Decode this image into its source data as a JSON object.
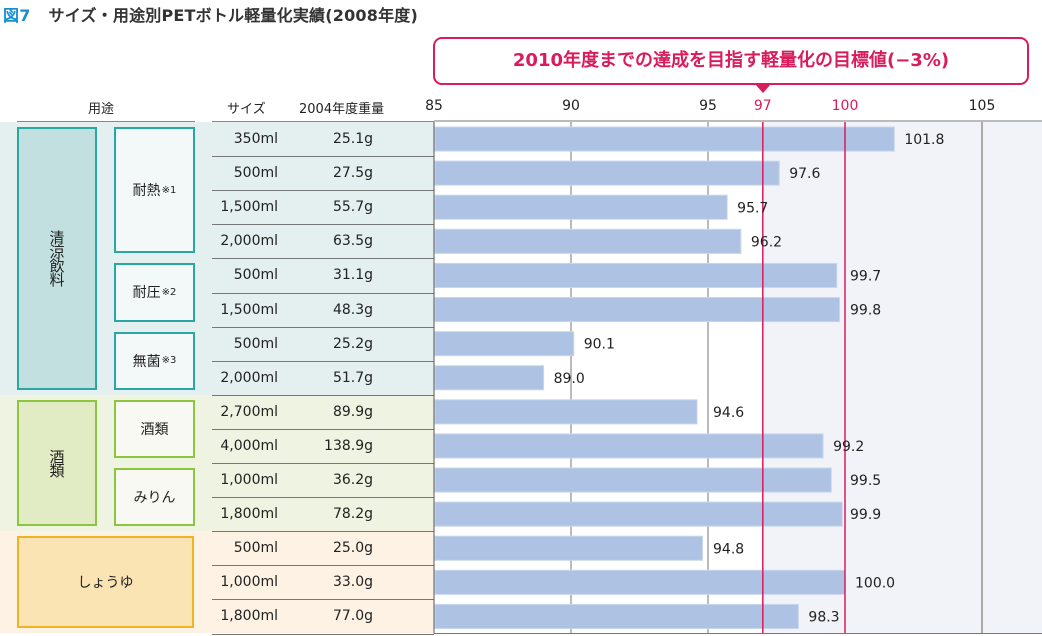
{
  "figure_label": "図7",
  "title": "サイズ・用途別PETボトル軽量化実績(2008年度)",
  "callout": "2010年度までの達成を目指す軽量化の目標値(−3%)",
  "headers": {
    "usage": "用途",
    "size": "サイズ",
    "weight2004": "2004年度重量"
  },
  "groups": [
    {
      "name": "清涼飲料",
      "color_bg": "#e3f0ef",
      "box_fill": "#c1e0df",
      "box_border": "#2aa7a3",
      "subgroups": [
        {
          "name": "耐熱",
          "note": "※1",
          "rows": 4
        },
        {
          "name": "耐圧",
          "note": "※2",
          "rows": 2
        },
        {
          "name": "無菌",
          "note": "※3",
          "rows": 2
        }
      ]
    },
    {
      "name": "酒類",
      "color_bg": "#eef4e1",
      "box_fill": "#e1ecc4",
      "box_border": "#8cc63f",
      "subgroups": [
        {
          "name": "酒類",
          "note": "",
          "rows": 2
        },
        {
          "name": "みりん",
          "note": "",
          "rows": 2
        }
      ]
    },
    {
      "name": "しょうゆ",
      "color_bg": "#fdf2e3",
      "box_fill": "#fbe4b3",
      "box_border": "#f0b323",
      "subgroups": []
    }
  ],
  "rows": [
    {
      "size": "350ml",
      "weight": "25.1g"
    },
    {
      "size": "500ml",
      "weight": "27.5g"
    },
    {
      "size": "1,500ml",
      "weight": "55.7g"
    },
    {
      "size": "2,000ml",
      "weight": "63.5g"
    },
    {
      "size": "500ml",
      "weight": "31.1g"
    },
    {
      "size": "1,500ml",
      "weight": "48.3g"
    },
    {
      "size": "500ml",
      "weight": "25.2g"
    },
    {
      "size": "2,000ml",
      "weight": "51.7g"
    },
    {
      "size": "2,700ml",
      "weight": "89.9g"
    },
    {
      "size": "4,000ml",
      "weight": "138.9g"
    },
    {
      "size": "1,000ml",
      "weight": "36.2g"
    },
    {
      "size": "1,800ml",
      "weight": "78.2g"
    },
    {
      "size": "500ml",
      "weight": "25.0g"
    },
    {
      "size": "1,000ml",
      "weight": "33.0g"
    },
    {
      "size": "1,800ml",
      "weight": "77.0g"
    }
  ],
  "chart_data": {
    "type": "bar",
    "orientation": "horizontal",
    "title": "サイズ・用途別PETボトル軽量化実績(2008年度)",
    "xlim": [
      85,
      107.2
    ],
    "ticks": [
      85,
      90,
      95,
      97,
      100,
      105
    ],
    "tick_labels": [
      "85",
      "90",
      "95",
      "97",
      "100",
      "105"
    ],
    "highlight_ticks": [
      97,
      100
    ],
    "target_value": 97,
    "baseline_value": 100,
    "categories": [
      "350ml",
      "500ml",
      "1,500ml",
      "2,000ml",
      "500ml",
      "1,500ml",
      "500ml",
      "2,000ml",
      "2,700ml",
      "4,000ml",
      "1,000ml",
      "1,800ml",
      "500ml",
      "1,000ml",
      "1,800ml"
    ],
    "values": [
      101.8,
      97.6,
      95.7,
      96.2,
      99.7,
      99.8,
      90.1,
      89.0,
      94.6,
      99.2,
      99.5,
      99.9,
      94.8,
      100.0,
      98.3
    ],
    "value_labels": [
      "101.8",
      "97.6",
      "95.7",
      "96.2",
      "99.7",
      "99.8",
      "90.1",
      "89.0",
      "94.6",
      "99.2",
      "99.5",
      "99.9",
      "94.8",
      "100.0",
      "98.3"
    ],
    "colors": {
      "bar": "#aec3e3",
      "bar_edge": "#c9d7ee",
      "target_line": "#d91c5c",
      "grid": "#777777",
      "right_bg": "#f2f3f9"
    }
  }
}
